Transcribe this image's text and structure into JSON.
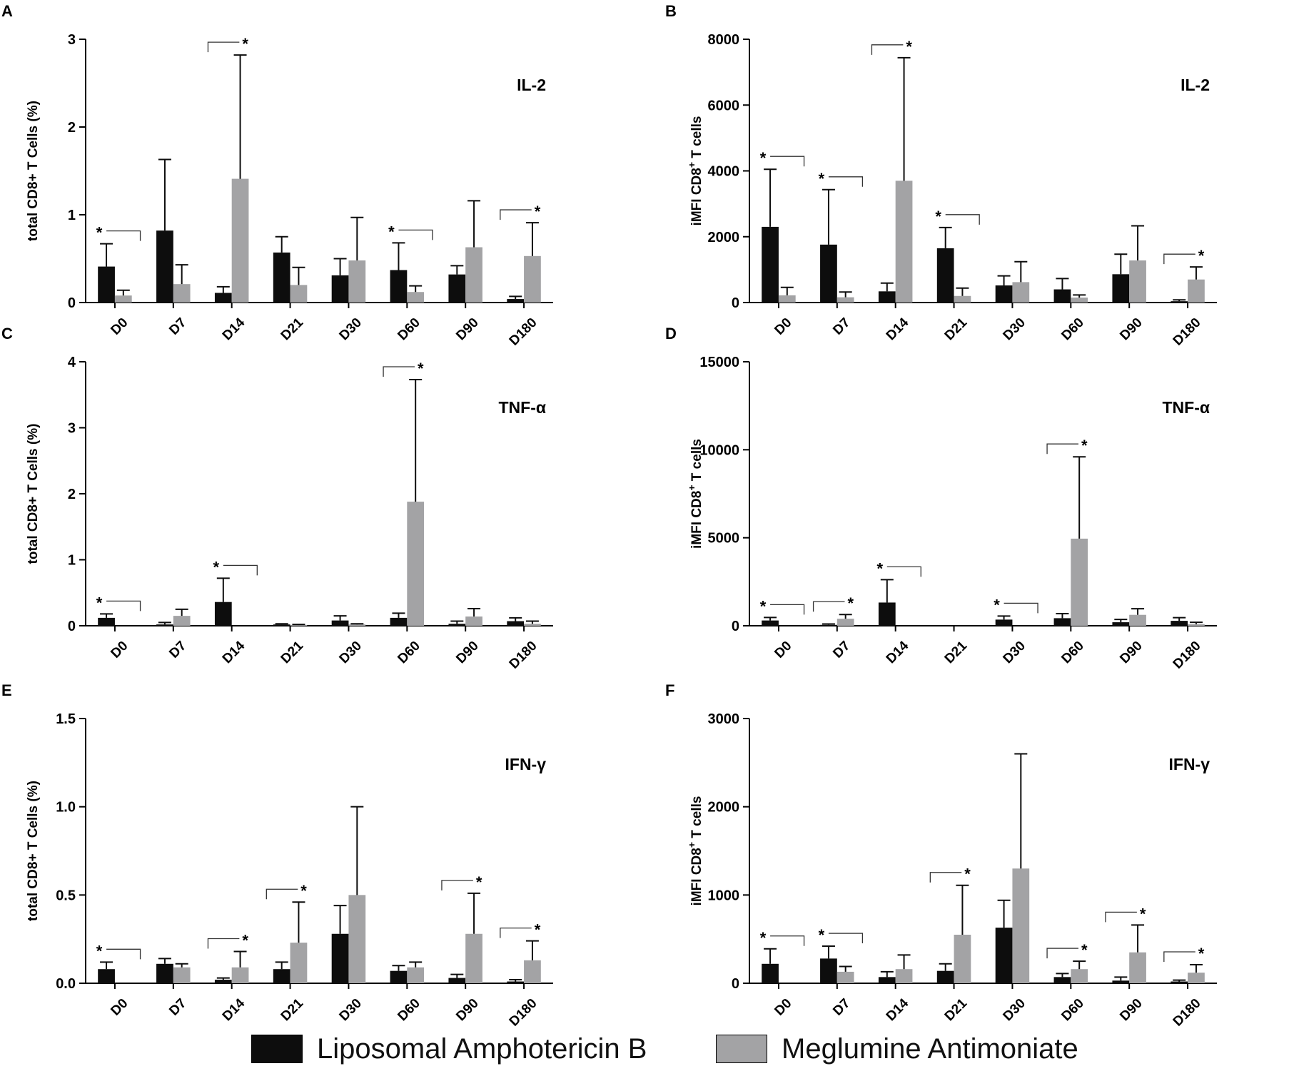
{
  "colors": {
    "lamb": "#0d0d0d",
    "ma": "#a3a3a5",
    "axis": "#000000",
    "text": "#000000"
  },
  "legend": {
    "series1": "Liposomal Amphotericin B",
    "series2": "Meglumine Antimoniate"
  },
  "sig_mark": "*",
  "chart_data": [
    {
      "panel": "A",
      "type": "bar",
      "cytokine": "IL-2",
      "ylabel": "total CD8+ T Cells (%)",
      "ylim": [
        0,
        3
      ],
      "yticks": [
        0,
        1,
        2,
        3
      ],
      "ytick_labels": [
        "0",
        "1",
        "2",
        "3"
      ],
      "categories": [
        "D0",
        "D7",
        "D14",
        "D21",
        "D30",
        "D60",
        "D90",
        "D180"
      ],
      "series": [
        {
          "name": "Liposomal Amphotericin B",
          "values": [
            0.41,
            0.82,
            0.11,
            0.57,
            0.31,
            0.37,
            0.32,
            0.04
          ],
          "errors": [
            0.26,
            0.81,
            0.07,
            0.18,
            0.19,
            0.31,
            0.1,
            0.03
          ]
        },
        {
          "name": "Meglumine Antimoniate",
          "values": [
            0.08,
            0.21,
            1.41,
            0.2,
            0.48,
            0.12,
            0.63,
            0.53
          ],
          "errors": [
            0.06,
            0.22,
            1.41,
            0.2,
            0.49,
            0.07,
            0.53,
            0.38
          ]
        }
      ],
      "significance": [
        {
          "category": "D0",
          "star": "left"
        },
        {
          "category": "D14",
          "star": "right"
        },
        {
          "category": "D60",
          "star": "left"
        },
        {
          "category": "D180",
          "star": "right"
        }
      ]
    },
    {
      "panel": "B",
      "type": "bar",
      "cytokine": "IL-2",
      "ylabel": "iMFI CD8+ T cells",
      "ylim": [
        0,
        8000
      ],
      "yticks": [
        0,
        2000,
        4000,
        6000,
        8000
      ],
      "ytick_labels": [
        "0",
        "2000",
        "4000",
        "6000",
        "8000"
      ],
      "categories": [
        "D0",
        "D7",
        "D14",
        "D21",
        "D30",
        "D60",
        "D90",
        "D180"
      ],
      "series": [
        {
          "name": "Liposomal Amphotericin B",
          "values": [
            2300,
            1760,
            340,
            1650,
            520,
            400,
            860,
            40
          ],
          "errors": [
            1750,
            1670,
            250,
            630,
            290,
            330,
            610,
            40
          ]
        },
        {
          "name": "Meglumine Antimoniate",
          "values": [
            220,
            160,
            3700,
            200,
            620,
            150,
            1280,
            700
          ],
          "errors": [
            240,
            160,
            3740,
            240,
            620,
            80,
            1050,
            380
          ]
        }
      ],
      "significance": [
        {
          "category": "D0",
          "star": "left"
        },
        {
          "category": "D7",
          "star": "left"
        },
        {
          "category": "D14",
          "star": "right"
        },
        {
          "category": "D21",
          "star": "left"
        },
        {
          "category": "D180",
          "star": "right"
        }
      ]
    },
    {
      "panel": "C",
      "type": "bar",
      "cytokine": "TNF-α",
      "ylabel": "total CD8+ T Cells (%)",
      "ylim": [
        0,
        4
      ],
      "yticks": [
        0,
        1,
        2,
        3,
        4
      ],
      "ytick_labels": [
        "0",
        "1",
        "2",
        "3",
        "4"
      ],
      "categories": [
        "D0",
        "D7",
        "D14",
        "D21",
        "D30",
        "D60",
        "D90",
        "D180"
      ],
      "series": [
        {
          "name": "Liposomal Amphotericin B",
          "values": [
            0.12,
            0.02,
            0.36,
            0.02,
            0.08,
            0.12,
            0.03,
            0.07
          ],
          "errors": [
            0.06,
            0.03,
            0.36,
            0.01,
            0.07,
            0.07,
            0.04,
            0.05
          ]
        },
        {
          "name": "Meglumine Antimoniate",
          "values": [
            0.0,
            0.15,
            0.0,
            0.01,
            0.02,
            1.88,
            0.14,
            0.03
          ],
          "errors": [
            0.0,
            0.1,
            0.0,
            0.01,
            0.01,
            1.85,
            0.12,
            0.04
          ]
        }
      ],
      "significance": [
        {
          "category": "D0",
          "star": "left"
        },
        {
          "category": "D14",
          "star": "left"
        },
        {
          "category": "D60",
          "star": "right"
        }
      ]
    },
    {
      "panel": "D",
      "type": "bar",
      "cytokine": "TNF-α",
      "ylabel": "iMFI CD8+ T cells",
      "ylim": [
        0,
        15000
      ],
      "yticks": [
        0,
        5000,
        10000,
        15000
      ],
      "ytick_labels": [
        "0",
        "5000",
        "10000",
        "15000"
      ],
      "categories": [
        "D0",
        "D7",
        "D14",
        "D21",
        "D30",
        "D60",
        "D90",
        "D180"
      ],
      "series": [
        {
          "name": "Liposomal Amphotericin B",
          "values": [
            300,
            50,
            1320,
            0,
            350,
            430,
            200,
            280
          ],
          "errors": [
            170,
            50,
            1300,
            0,
            200,
            260,
            160,
            180
          ]
        },
        {
          "name": "Meglumine Antimoniate",
          "values": [
            0,
            400,
            0,
            0,
            0,
            4950,
            620,
            90
          ],
          "errors": [
            0,
            240,
            0,
            0,
            0,
            4650,
            350,
            110
          ]
        }
      ],
      "significance": [
        {
          "category": "D0",
          "star": "left"
        },
        {
          "category": "D7",
          "star": "right"
        },
        {
          "category": "D14",
          "star": "left"
        },
        {
          "category": "D30",
          "star": "left"
        },
        {
          "category": "D60",
          "star": "right"
        }
      ]
    },
    {
      "panel": "E",
      "type": "bar",
      "cytokine": "IFN-γ",
      "ylabel": "total CD8+ T Cells (%)",
      "ylim": [
        0,
        1.5
      ],
      "yticks": [
        0,
        0.5,
        1.0,
        1.5
      ],
      "ytick_labels": [
        "0.0",
        "0.5",
        "1.0",
        "1.5"
      ],
      "categories": [
        "D0",
        "D7",
        "D14",
        "D21",
        "D30",
        "D60",
        "D90",
        "D180"
      ],
      "series": [
        {
          "name": "Liposomal Amphotericin B",
          "values": [
            0.08,
            0.11,
            0.02,
            0.08,
            0.28,
            0.07,
            0.03,
            0.01
          ],
          "errors": [
            0.04,
            0.03,
            0.01,
            0.04,
            0.16,
            0.03,
            0.02,
            0.01
          ]
        },
        {
          "name": "Meglumine Antimoniate",
          "values": [
            0.0,
            0.09,
            0.09,
            0.23,
            0.5,
            0.09,
            0.28,
            0.13
          ],
          "errors": [
            0.0,
            0.02,
            0.09,
            0.23,
            0.5,
            0.03,
            0.23,
            0.11
          ]
        }
      ],
      "significance": [
        {
          "category": "D0",
          "star": "left"
        },
        {
          "category": "D14",
          "star": "right"
        },
        {
          "category": "D21",
          "star": "right"
        },
        {
          "category": "D90",
          "star": "right"
        },
        {
          "category": "D180",
          "star": "right"
        }
      ]
    },
    {
      "panel": "F",
      "type": "bar",
      "cytokine": "IFN-γ",
      "ylabel": "iMFI CD8+ T cells",
      "ylim": [
        0,
        3000
      ],
      "yticks": [
        0,
        1000,
        2000,
        3000
      ],
      "ytick_labels": [
        "0",
        "1000",
        "2000",
        "3000"
      ],
      "categories": [
        "D0",
        "D7",
        "D14",
        "D21",
        "D30",
        "D60",
        "D90",
        "D180"
      ],
      "series": [
        {
          "name": "Liposomal Amphotericin B",
          "values": [
            220,
            280,
            70,
            140,
            630,
            70,
            30,
            20
          ],
          "errors": [
            170,
            140,
            60,
            80,
            310,
            40,
            40,
            15
          ]
        },
        {
          "name": "Meglumine Antimoniate",
          "values": [
            0,
            130,
            160,
            550,
            1300,
            160,
            350,
            120
          ],
          "errors": [
            0,
            60,
            160,
            560,
            1300,
            90,
            310,
            90
          ]
        }
      ],
      "significance": [
        {
          "category": "D0",
          "star": "left"
        },
        {
          "category": "D7",
          "star": "left"
        },
        {
          "category": "D21",
          "star": "right"
        },
        {
          "category": "D60",
          "star": "right"
        },
        {
          "category": "D90",
          "star": "right"
        },
        {
          "category": "D180",
          "star": "right"
        }
      ]
    }
  ]
}
